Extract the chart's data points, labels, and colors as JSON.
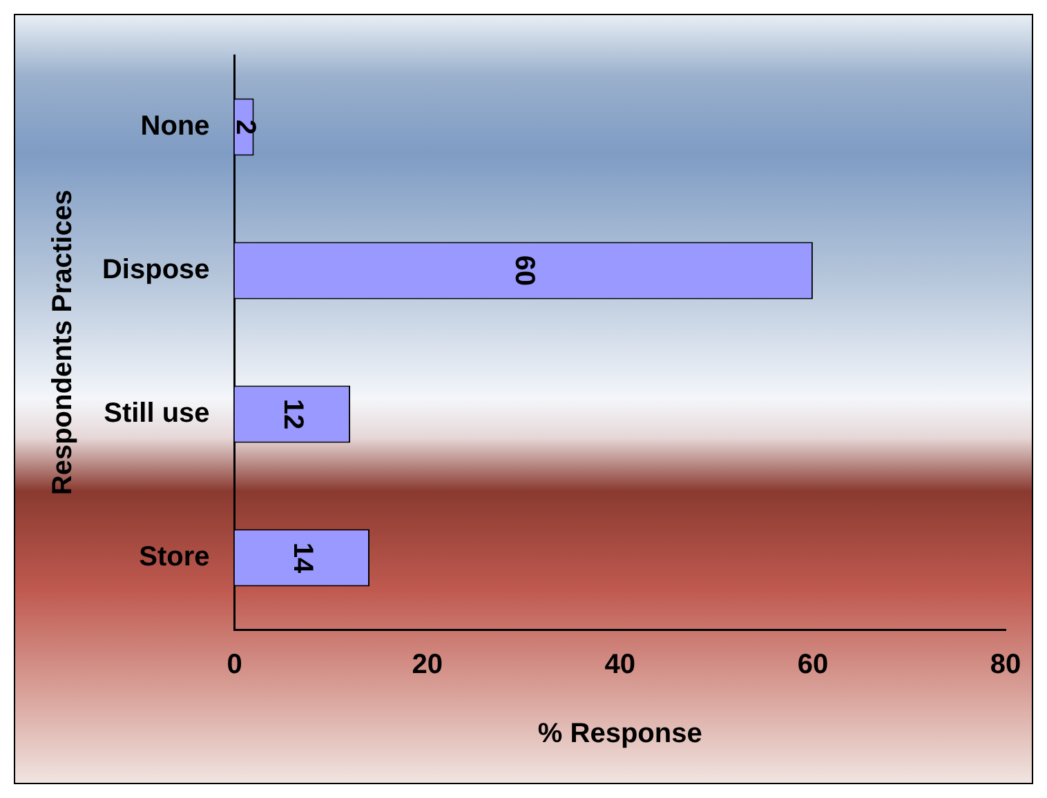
{
  "chart_data": {
    "type": "bar",
    "orientation": "horizontal",
    "xlabel": "% Response",
    "ylabel": "Respondents Practices",
    "categories": [
      "None",
      "Dispose",
      "Still use",
      "Store"
    ],
    "values": [
      2,
      60,
      12,
      14
    ],
    "color": "#9999ff",
    "xlim": [
      0,
      80
    ],
    "xticks": [
      0,
      20,
      40,
      60,
      80
    ],
    "grid": false,
    "legend": false,
    "data_labels": true
  }
}
